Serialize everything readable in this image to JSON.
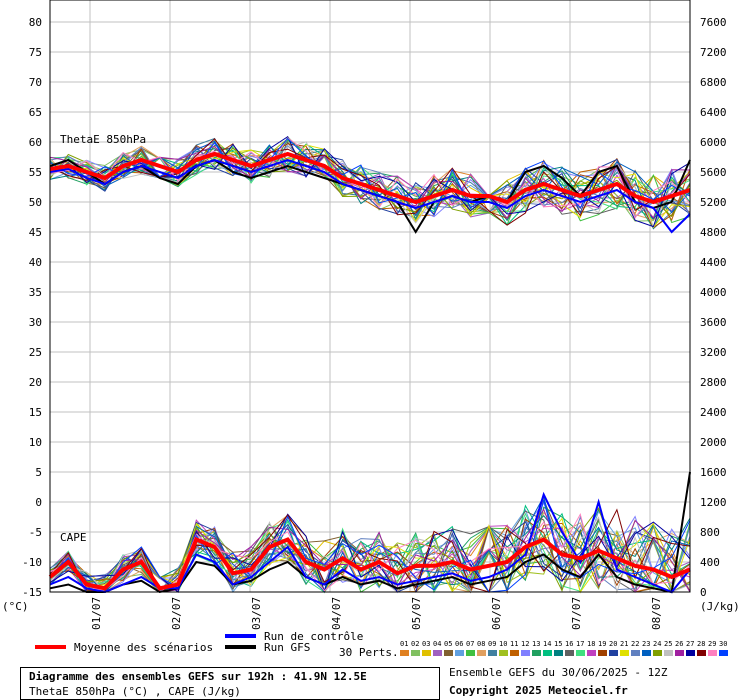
{
  "chart_data": {
    "type": "line",
    "left_axis": {
      "unit": "(°C)",
      "ylim": [
        -15,
        80
      ],
      "ticks": [
        "80",
        "75",
        "70",
        "65",
        "60",
        "55",
        "50",
        "45",
        "40",
        "35",
        "30",
        "25",
        "20",
        "15",
        "10",
        "5",
        "0",
        "-5",
        "-10",
        "-15"
      ]
    },
    "right_axis": {
      "unit": "(J/kg)",
      "ylim": [
        0,
        7600
      ],
      "ticks": [
        "7600",
        "7200",
        "6800",
        "6400",
        "6000",
        "5600",
        "5200",
        "4800",
        "4400",
        "4000",
        "3600",
        "3200",
        "2800",
        "2400",
        "2000",
        "1600",
        "1200",
        "800",
        "400",
        "0"
      ]
    },
    "x_ticks": [
      "01/07",
      "02/07",
      "03/07",
      "04/07",
      "05/07",
      "06/07",
      "07/07",
      "08/07"
    ],
    "grid": true,
    "panels": [
      {
        "label": "ThetaE 850hPa",
        "mean": [
          55.5,
          56,
          55,
          54,
          56,
          57,
          56,
          55,
          57,
          58,
          57,
          56,
          57,
          58,
          57,
          56,
          54,
          53,
          52,
          51,
          50,
          51,
          52,
          51,
          51,
          50,
          52,
          53,
          52,
          51,
          52,
          53,
          51,
          50,
          51,
          52
        ],
        "control": [
          55,
          55.5,
          54,
          53,
          55,
          56,
          55,
          54,
          56,
          57,
          56,
          55,
          56,
          57,
          56,
          55,
          53,
          52,
          51,
          50,
          49,
          50,
          51,
          50,
          50,
          49,
          51,
          52,
          51,
          50,
          51,
          52,
          50,
          49,
          45,
          48
        ],
        "gfs": [
          56,
          57,
          55,
          53,
          55,
          56,
          54,
          53,
          56,
          57,
          55,
          54,
          55,
          56,
          55,
          54,
          53,
          52,
          51,
          50,
          45,
          50,
          51,
          50,
          51,
          50,
          55,
          56,
          54,
          51,
          55,
          56,
          50,
          49,
          50,
          57
        ]
      },
      {
        "label": "CAPE",
        "mean": [
          200,
          400,
          100,
          50,
          300,
          400,
          50,
          100,
          700,
          600,
          250,
          300,
          600,
          700,
          400,
          300,
          450,
          300,
          400,
          250,
          350,
          350,
          400,
          300,
          350,
          400,
          600,
          700,
          500,
          450,
          550,
          450,
          350,
          300,
          200,
          300
        ],
        "control": [
          100,
          200,
          50,
          0,
          100,
          200,
          50,
          50,
          500,
          400,
          100,
          200,
          400,
          600,
          200,
          100,
          300,
          150,
          200,
          100,
          150,
          200,
          250,
          150,
          200,
          300,
          500,
          1300,
          800,
          400,
          1200,
          300,
          200,
          100,
          0,
          300
        ],
        "gfs": [
          50,
          100,
          0,
          0,
          100,
          150,
          0,
          50,
          400,
          350,
          100,
          150,
          300,
          400,
          200,
          100,
          200,
          100,
          150,
          50,
          100,
          150,
          200,
          100,
          150,
          200,
          400,
          500,
          300,
          200,
          500,
          200,
          100,
          50,
          0,
          1600
        ]
      }
    ],
    "legend": [
      {
        "name": "Moyenne des scénarios",
        "color": "#ff0000"
      },
      {
        "name": "Run de contrôle",
        "color": "#0000ff"
      },
      {
        "name": "Run GFS",
        "color": "#000000"
      }
    ],
    "perturbations": {
      "label": "30 Perts.",
      "codes": [
        "01",
        "02",
        "03",
        "04",
        "05",
        "06",
        "07",
        "08",
        "09",
        "10",
        "11",
        "12",
        "13",
        "14",
        "15",
        "16",
        "17",
        "18",
        "19",
        "20",
        "21",
        "22",
        "23",
        "24",
        "25",
        "26",
        "27",
        "28",
        "29",
        "30"
      ],
      "colors": [
        "#e08020",
        "#80c060",
        "#e0c000",
        "#a060c0",
        "#806030",
        "#60a0e0",
        "#40c040",
        "#e0a060",
        "#4080a0",
        "#a0c020",
        "#c06000",
        "#8080ff",
        "#20a060",
        "#00c080",
        "#008080",
        "#606060",
        "#40e080",
        "#c040c0",
        "#a04000",
        "#2040a0",
        "#e0e000",
        "#6080c0",
        "#0060c0",
        "#80a000",
        "#c0c0c0",
        "#a020a0",
        "#0000a0",
        "#800000",
        "#ff80c0",
        "#0040ff"
      ]
    }
  },
  "footer": {
    "title": "Diagramme des ensembles GEFS sur 192h : 41.9N 12.5E",
    "subtitle": "ThetaE 850hPa (°C) , CAPE (J/kg)",
    "ensemble": "Ensemble GEFS du 30/06/2025 - 12Z",
    "copyright": "Copyright 2025 Meteociel.fr"
  }
}
